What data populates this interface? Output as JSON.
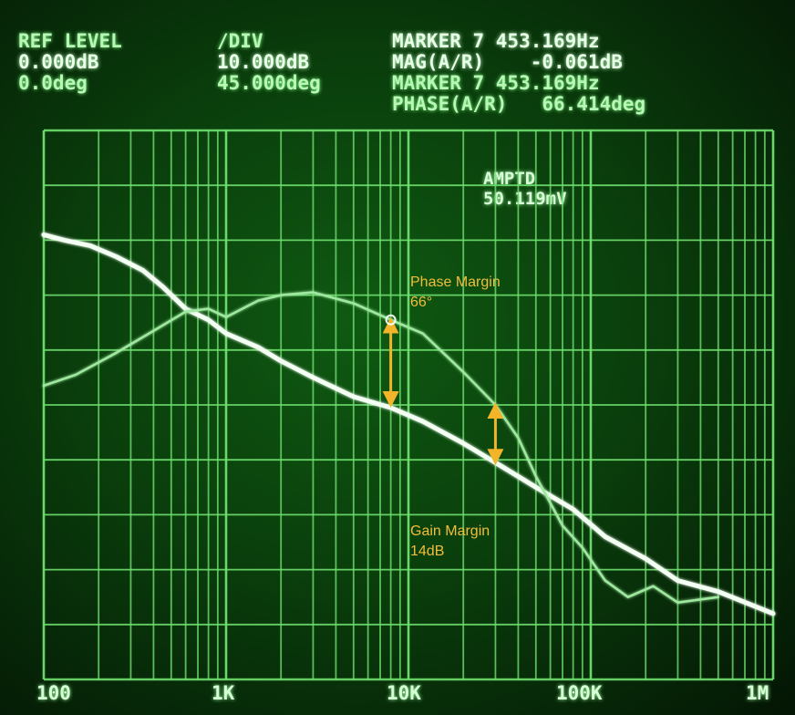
{
  "header": {
    "ref_level_label": "REF LEVEL",
    "ref_level_mag": "0.000dB",
    "ref_level_phase": "0.0deg",
    "div_label": "/DIV",
    "div_mag": "10.000dB",
    "div_phase": "45.000deg",
    "marker_mag_line1": "MARKER 7 453.169Hz",
    "marker_mag_line2": "MAG(A/R)    -0.061dB",
    "marker_phase_line1": "MARKER 7 453.169Hz",
    "marker_phase_line2": "PHASE(A/R)   66.414deg",
    "amptd_label": "AMPTD",
    "amptd_value": "50.119mV"
  },
  "chart_data": {
    "type": "line",
    "x_scale": "log",
    "xlim": [
      100,
      1000000
    ],
    "x_ticks": [
      {
        "value": 100,
        "label": "100"
      },
      {
        "value": 1000,
        "label": "1K"
      },
      {
        "value": 10000,
        "label": "10K"
      },
      {
        "value": 100000,
        "label": "100K"
      },
      {
        "value": 1000000,
        "label": "1M"
      }
    ],
    "y_grid_divisions": 10,
    "reference_line_div": 5,
    "grid": true,
    "series": [
      {
        "role": "magnitude",
        "color": "#f4fff4",
        "points": [
          [
            100,
            8.1
          ],
          [
            130,
            8.0
          ],
          [
            180,
            7.9
          ],
          [
            250,
            7.7
          ],
          [
            350,
            7.45
          ],
          [
            450,
            7.15
          ],
          [
            600,
            6.75
          ],
          [
            800,
            6.55
          ],
          [
            1000,
            6.3
          ],
          [
            1500,
            6.05
          ],
          [
            2000,
            5.8
          ],
          [
            3000,
            5.5
          ],
          [
            5000,
            5.15
          ],
          [
            8000,
            4.95
          ],
          [
            12000,
            4.7
          ],
          [
            20000,
            4.3
          ],
          [
            30000,
            3.95
          ],
          [
            50000,
            3.5
          ],
          [
            80000,
            3.1
          ],
          [
            120000,
            2.6
          ],
          [
            200000,
            2.2
          ],
          [
            300000,
            1.8
          ],
          [
            500000,
            1.6
          ],
          [
            1000000,
            1.2
          ]
        ]
      },
      {
        "role": "phase",
        "color": "#9fe89f",
        "points": [
          [
            100,
            5.35
          ],
          [
            150,
            5.55
          ],
          [
            250,
            5.95
          ],
          [
            400,
            6.35
          ],
          [
            600,
            6.7
          ],
          [
            800,
            6.75
          ],
          [
            1000,
            6.6
          ],
          [
            1500,
            6.9
          ],
          [
            2000,
            7.0
          ],
          [
            3000,
            7.05
          ],
          [
            5000,
            6.85
          ],
          [
            8000,
            6.55
          ],
          [
            12000,
            6.3
          ],
          [
            20000,
            5.6
          ],
          [
            30000,
            5.0
          ],
          [
            40000,
            4.4
          ],
          [
            50000,
            3.7
          ],
          [
            70000,
            2.8
          ],
          [
            90000,
            2.4
          ],
          [
            120000,
            1.8
          ],
          [
            160000,
            1.5
          ],
          [
            220000,
            1.7
          ],
          [
            300000,
            1.4
          ],
          [
            500000,
            1.5
          ]
        ]
      }
    ],
    "annotations": [
      {
        "label": "Phase Margin",
        "value": "66°",
        "x": 8000
      },
      {
        "label": "Gain Margin",
        "value": "14dB",
        "x": 30000
      }
    ]
  }
}
